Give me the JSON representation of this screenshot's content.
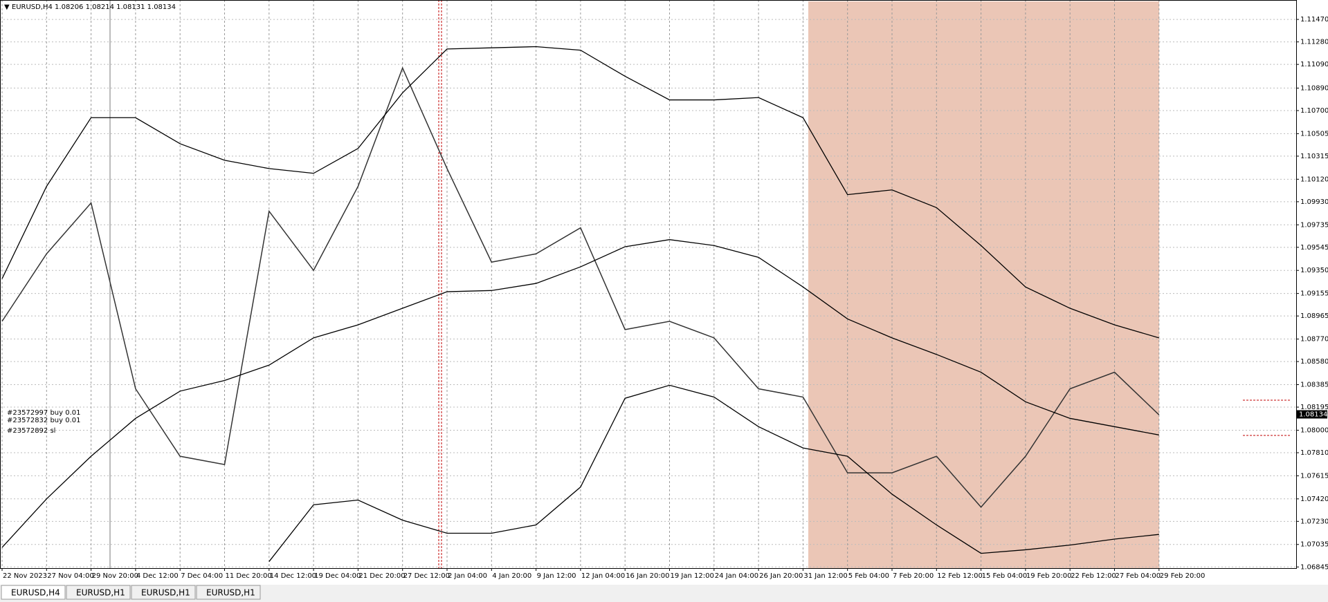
{
  "header": "EURUSD,H4  1.08206 1.08214 1.08131 1.08134",
  "orders": [
    "#23572997 buy 0.01",
    "#23572832 buy 0.01",
    "#23572892 sl"
  ],
  "tabs": [
    "EURUSD,H4",
    "EURUSD,H1",
    "EURUSD,H1",
    "EURUSD,H1"
  ],
  "chart_data": {
    "type": "line",
    "categories": [
      "22 Nov 2023",
      "27 Nov 04:00",
      "29 Nov 20:00",
      "4 Dec 12:00",
      "7 Dec 04:00",
      "11 Dec 20:00",
      "14 Dec 12:00",
      "19 Dec 04:00",
      "21 Dec 20:00",
      "27 Dec 12:00",
      "2 Jan 04:00",
      "4 Jan 20:00",
      "9 Jan 12:00",
      "12 Jan 04:00",
      "16 Jan 20:00",
      "19 Jan 12:00",
      "24 Jan 04:00",
      "26 Jan 20:00",
      "31 Jan 12:00",
      "5 Feb 04:00",
      "7 Feb 20:00",
      "12 Feb 12:00",
      "15 Feb 04:00",
      "19 Feb 20:00",
      "22 Feb 12:00",
      "27 Feb 04:00",
      "29 Feb 20:00"
    ],
    "series": [
      {
        "color": "#333333",
        "values": [
          1.0892,
          1.0949,
          1.0992,
          1.0835,
          1.0778,
          1.0771,
          1.0985,
          1.0935,
          1.1006,
          1.1106,
          1.1021,
          1.0942,
          1.0949,
          1.0971,
          1.0885,
          1.0892,
          1.0878,
          1.0835,
          1.0828,
          1.0764,
          1.0764,
          1.0778,
          1.0735,
          1.0778,
          1.0835,
          1.0849,
          1.0813
        ]
      },
      {
        "color": "#000000",
        "values": [
          1.0928,
          1.1006,
          1.1064,
          1.1064,
          1.1042,
          1.1028,
          1.1021,
          1.1017,
          1.1038,
          1.1085,
          1.1122,
          1.1123,
          1.1124,
          1.1121,
          1.1099,
          1.1079,
          1.1079,
          1.1081,
          1.1064,
          1.0999,
          1.1003,
          1.0988,
          1.0956,
          1.0921,
          1.0903,
          1.0889,
          1.0878
        ]
      },
      {
        "color": "#000000",
        "values": [
          1.0701,
          1.0742,
          1.0778,
          1.081,
          1.0833,
          1.0842,
          1.0855,
          1.0878,
          1.0889,
          1.0903,
          1.0917,
          1.0918,
          1.0924,
          1.0938,
          1.0955,
          1.0961,
          1.0956,
          1.0946,
          1.0921,
          1.0894,
          1.0878,
          1.0864,
          1.0849,
          1.0824,
          1.081,
          1.0803,
          1.0796
        ]
      },
      {
        "color": "#000000",
        "values": [
          null,
          null,
          null,
          null,
          null,
          null,
          1.0689,
          1.0737,
          1.0741,
          1.0724,
          1.0713,
          1.0713,
          1.072,
          1.0752,
          1.0827,
          1.0838,
          1.0828,
          1.0803,
          1.0785,
          1.0778,
          1.0746,
          1.072,
          1.0696,
          1.0699,
          1.0703,
          1.0708,
          1.0712
        ]
      }
    ],
    "ylim": [
      1.06835,
      1.11634
    ],
    "yticks": [
      {
        "value": 1.1147,
        "label": "1.11470"
      },
      {
        "value": 1.1128,
        "label": "1.11280"
      },
      {
        "value": 1.1109,
        "label": "1.11090"
      },
      {
        "value": 1.1089,
        "label": "1.10890"
      },
      {
        "value": 1.107,
        "label": "1.10700"
      },
      {
        "value": 1.10505,
        "label": "1.10505"
      },
      {
        "value": 1.10315,
        "label": "1.10315"
      },
      {
        "value": 1.1012,
        "label": "1.10120"
      },
      {
        "value": 1.0993,
        "label": "1.09930"
      },
      {
        "value": 1.09735,
        "label": "1.09735"
      },
      {
        "value": 1.09545,
        "label": "1.09545"
      },
      {
        "value": 1.0935,
        "label": "1.09350"
      },
      {
        "value": 1.09155,
        "label": "1.09155"
      },
      {
        "value": 1.08965,
        "label": "1.08965"
      },
      {
        "value": 1.0877,
        "label": "1.08770"
      },
      {
        "value": 1.0858,
        "label": "1.08580"
      },
      {
        "value": 1.08385,
        "label": "1.08385"
      },
      {
        "value": 1.08195,
        "label": "1.08195"
      },
      {
        "value": 1.08,
        "label": "1.08000"
      },
      {
        "value": 1.0781,
        "label": "1.07810"
      },
      {
        "value": 1.07615,
        "label": "1.07615"
      },
      {
        "value": 1.0742,
        "label": "1.07420"
      },
      {
        "value": 1.0723,
        "label": "1.07230"
      },
      {
        "value": 1.07035,
        "label": "1.07035"
      },
      {
        "value": 1.06845,
        "label": "1.06845"
      }
    ],
    "price_marker": {
      "value": 1.08134,
      "label": "1.08134"
    },
    "grid": true
  }
}
